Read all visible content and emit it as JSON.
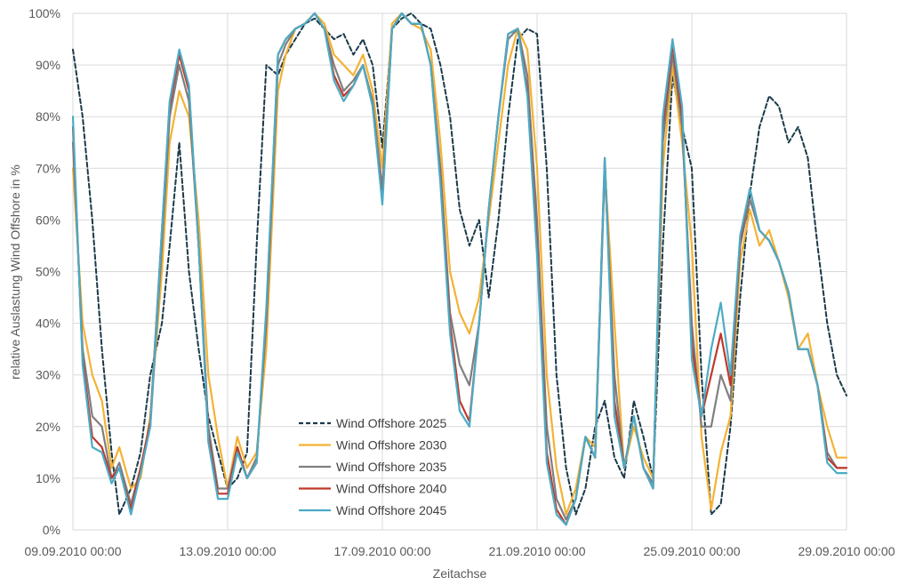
{
  "chart_data": {
    "type": "line",
    "title": "",
    "xlabel": "Zeitachse",
    "ylabel": "relative Auslastung Wind Offshore in %",
    "x_range_days": [
      0,
      20
    ],
    "x_ticks": [
      {
        "day": 0,
        "label": "09.09.2010 00:00"
      },
      {
        "day": 4,
        "label": "13.09.2010 00:00"
      },
      {
        "day": 8,
        "label": "17.09.2010 00:00"
      },
      {
        "day": 12,
        "label": "21.09.2010 00:00"
      },
      {
        "day": 16,
        "label": "25.09.2010 00:00"
      },
      {
        "day": 20,
        "label": "29.09.2010 00:00"
      }
    ],
    "ylim": [
      0,
      100
    ],
    "y_ticks": [
      "0%",
      "10%",
      "20%",
      "30%",
      "40%",
      "50%",
      "60%",
      "70%",
      "80%",
      "90%",
      "100%"
    ],
    "grid": true,
    "legend_position": "bottom-center",
    "x_day_samples": [
      0,
      0.25,
      0.5,
      0.75,
      1,
      1.2,
      1.5,
      1.75,
      2,
      2.3,
      2.5,
      2.75,
      3,
      3.25,
      3.5,
      3.75,
      4,
      4.25,
      4.5,
      4.75,
      5,
      5.3,
      5.5,
      5.75,
      6,
      6.25,
      6.5,
      6.75,
      7,
      7.25,
      7.5,
      7.75,
      8,
      8.25,
      8.5,
      8.75,
      9,
      9.25,
      9.5,
      9.75,
      10,
      10.25,
      10.5,
      10.75,
      11,
      11.25,
      11.5,
      11.75,
      12,
      12.25,
      12.5,
      12.75,
      13,
      13.25,
      13.5,
      13.75,
      14,
      14.25,
      14.5,
      14.75,
      15,
      15.25,
      15.5,
      15.75,
      16,
      16.25,
      16.5,
      16.75,
      17,
      17.25,
      17.5,
      17.75,
      18,
      18.25,
      18.5,
      18.75,
      19,
      19.25,
      19.5,
      19.75,
      20
    ],
    "series": [
      {
        "name": "Wind Offshore 2025",
        "color": "#1a3a4a",
        "dash": true,
        "values": [
          93,
          80,
          60,
          35,
          15,
          3,
          8,
          15,
          30,
          40,
          55,
          75,
          50,
          35,
          22,
          15,
          8,
          10,
          15,
          55,
          90,
          88,
          92,
          95,
          98,
          99,
          97,
          95,
          96,
          92,
          95,
          90,
          74,
          97,
          99,
          100,
          98,
          97,
          90,
          80,
          62,
          55,
          60,
          45,
          60,
          80,
          95,
          97,
          96,
          70,
          30,
          12,
          3,
          8,
          20,
          25,
          14,
          10,
          25,
          18,
          10,
          55,
          88,
          78,
          70,
          30,
          3,
          5,
          20,
          45,
          65,
          78,
          84,
          82,
          75,
          78,
          72,
          55,
          40,
          30,
          26
        ]
      },
      {
        "name": "Wind Offshore 2030",
        "color": "#f4b233",
        "dash": false,
        "values": [
          70,
          40,
          30,
          25,
          12,
          16,
          8,
          10,
          22,
          50,
          75,
          85,
          80,
          60,
          30,
          18,
          8,
          18,
          12,
          15,
          35,
          85,
          92,
          97,
          98,
          100,
          98,
          92,
          90,
          88,
          92,
          85,
          70,
          98,
          100,
          98,
          97,
          93,
          75,
          50,
          42,
          38,
          45,
          60,
          75,
          90,
          97,
          93,
          70,
          30,
          12,
          3,
          8,
          18,
          16,
          70,
          40,
          12,
          20,
          14,
          10,
          70,
          90,
          75,
          55,
          18,
          4,
          15,
          22,
          52,
          62,
          55,
          58,
          52,
          45,
          35,
          38,
          28,
          20,
          14,
          14
        ]
      },
      {
        "name": "Wind Offshore 2035",
        "color": "#7f7f7f",
        "dash": false,
        "values": [
          75,
          35,
          22,
          20,
          10,
          13,
          5,
          12,
          20,
          55,
          80,
          90,
          83,
          55,
          20,
          8,
          8,
          16,
          10,
          14,
          40,
          90,
          94,
          97,
          98,
          100,
          97,
          90,
          85,
          87,
          90,
          83,
          66,
          97,
          100,
          98,
          98,
          90,
          70,
          42,
          32,
          28,
          40,
          62,
          80,
          95,
          97,
          88,
          60,
          20,
          6,
          2,
          6,
          18,
          14,
          70,
          30,
          12,
          22,
          12,
          9,
          75,
          92,
          78,
          40,
          20,
          20,
          30,
          25,
          55,
          64,
          58,
          56,
          52,
          46,
          35,
          35,
          28,
          15,
          12,
          12
        ]
      },
      {
        "name": "Wind Offshore 2040",
        "color": "#c0392b",
        "dash": false,
        "values": [
          78,
          33,
          18,
          16,
          10,
          12,
          4,
          12,
          21,
          58,
          82,
          92,
          85,
          55,
          18,
          7,
          7,
          16,
          10,
          13,
          42,
          92,
          95,
          97,
          98,
          100,
          97,
          88,
          84,
          86,
          90,
          82,
          64,
          97,
          100,
          98,
          98,
          90,
          68,
          40,
          25,
          21,
          40,
          62,
          80,
          96,
          97,
          85,
          55,
          15,
          4,
          1,
          6,
          18,
          14,
          72,
          25,
          12,
          22,
          12,
          8,
          78,
          94,
          80,
          36,
          22,
          30,
          38,
          28,
          56,
          66,
          58,
          56,
          52,
          46,
          35,
          35,
          28,
          14,
          12,
          12
        ]
      },
      {
        "name": "Wind Offshore 2045",
        "color": "#4bacc6",
        "dash": false,
        "values": [
          80,
          32,
          16,
          15,
          9,
          12,
          3,
          11,
          20,
          58,
          83,
          93,
          86,
          55,
          17,
          6,
          6,
          15,
          10,
          13,
          43,
          92,
          95,
          97,
          98,
          100,
          97,
          87,
          83,
          86,
          90,
          82,
          63,
          97,
          100,
          98,
          98,
          90,
          67,
          38,
          23,
          20,
          40,
          62,
          80,
          96,
          97,
          84,
          53,
          13,
          3,
          1,
          6,
          18,
          14,
          72,
          22,
          12,
          22,
          12,
          8,
          80,
          95,
          82,
          33,
          22,
          35,
          44,
          30,
          57,
          66,
          58,
          56,
          52,
          46,
          35,
          35,
          28,
          13,
          11,
          11
        ]
      }
    ]
  }
}
